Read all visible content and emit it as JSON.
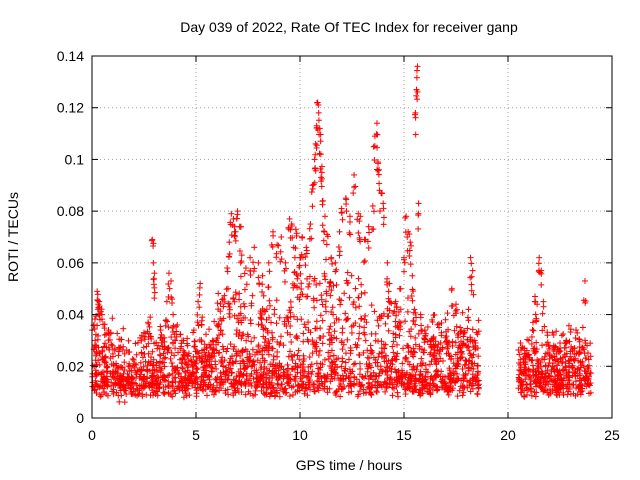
{
  "chart_data": {
    "type": "scatter",
    "title": "Day 039 of 2022, Rate Of TEC Index for receiver ganp",
    "xlabel": "GPS time / hours",
    "ylabel": "ROTI / TECUs",
    "xlim": [
      0,
      25
    ],
    "ylim": [
      0,
      0.14
    ],
    "x_ticks": [
      "0",
      "5",
      "10",
      "15",
      "20",
      "25"
    ],
    "y_ticks": [
      "0",
      "0.02",
      "0.04",
      "0.06",
      "0.08",
      "0.1",
      "0.12",
      "0.14"
    ],
    "grid": true,
    "marker": "+",
    "color": "#ff0000",
    "data_gap_hours": [
      18.6,
      20.5
    ],
    "series": [
      {
        "points": [
          [
            0.0,
            0.034
          ],
          [
            0.1,
            0.036
          ],
          [
            0.15,
            0.03
          ],
          [
            0.2,
            0.028
          ],
          [
            0.25,
            0.049
          ],
          [
            0.3,
            0.044
          ],
          [
            0.35,
            0.045
          ],
          [
            0.5,
            0.026
          ],
          [
            0.6,
            0.022
          ],
          [
            0.7,
            0.02
          ],
          [
            1.0,
            0.018
          ],
          [
            1.3,
            0.016
          ],
          [
            1.6,
            0.015
          ],
          [
            1.9,
            0.016
          ],
          [
            2.2,
            0.018
          ],
          [
            2.4,
            0.032
          ],
          [
            2.5,
            0.033
          ],
          [
            2.7,
            0.037
          ],
          [
            2.8,
            0.039
          ],
          [
            2.9,
            0.069
          ],
          [
            2.95,
            0.06
          ],
          [
            3.0,
            0.056
          ],
          [
            3.3,
            0.034
          ],
          [
            3.6,
            0.045
          ],
          [
            3.7,
            0.056
          ],
          [
            3.8,
            0.053
          ],
          [
            3.9,
            0.04
          ],
          [
            4.1,
            0.036
          ],
          [
            4.4,
            0.03
          ],
          [
            4.6,
            0.028
          ],
          [
            4.9,
            0.034
          ],
          [
            5.1,
            0.045
          ],
          [
            5.2,
            0.052
          ],
          [
            5.3,
            0.039
          ],
          [
            5.5,
            0.027
          ],
          [
            5.8,
            0.03
          ],
          [
            6.1,
            0.036
          ],
          [
            6.3,
            0.046
          ],
          [
            6.5,
            0.058
          ],
          [
            6.6,
            0.068
          ],
          [
            6.7,
            0.079
          ],
          [
            6.8,
            0.077
          ],
          [
            6.9,
            0.072
          ],
          [
            7.0,
            0.08
          ],
          [
            7.1,
            0.074
          ],
          [
            7.2,
            0.063
          ],
          [
            7.4,
            0.058
          ],
          [
            7.6,
            0.062
          ],
          [
            7.8,
            0.066
          ],
          [
            8.0,
            0.06
          ],
          [
            8.2,
            0.055
          ],
          [
            8.5,
            0.06
          ],
          [
            8.7,
            0.072
          ],
          [
            8.9,
            0.067
          ],
          [
            9.1,
            0.07
          ],
          [
            9.3,
            0.06
          ],
          [
            9.5,
            0.077
          ],
          [
            9.6,
            0.075
          ],
          [
            9.7,
            0.066
          ],
          [
            9.8,
            0.073
          ],
          [
            9.9,
            0.055
          ],
          [
            10.0,
            0.062
          ],
          [
            10.1,
            0.07
          ],
          [
            10.3,
            0.066
          ],
          [
            10.5,
            0.075
          ],
          [
            10.6,
            0.09
          ],
          [
            10.7,
            0.1
          ],
          [
            10.75,
            0.106
          ],
          [
            10.8,
            0.113
          ],
          [
            10.85,
            0.122
          ],
          [
            10.9,
            0.118
          ],
          [
            10.95,
            0.112
          ],
          [
            11.0,
            0.102
          ],
          [
            11.05,
            0.095
          ],
          [
            11.1,
            0.084
          ],
          [
            11.2,
            0.078
          ],
          [
            11.3,
            0.071
          ],
          [
            11.5,
            0.062
          ],
          [
            11.7,
            0.06
          ],
          [
            11.9,
            0.072
          ],
          [
            12.0,
            0.081
          ],
          [
            12.2,
            0.085
          ],
          [
            12.4,
            0.078
          ],
          [
            12.6,
            0.094
          ],
          [
            12.8,
            0.079
          ],
          [
            12.9,
            0.078
          ],
          [
            13.1,
            0.069
          ],
          [
            13.3,
            0.074
          ],
          [
            13.5,
            0.082
          ],
          [
            13.6,
            0.109
          ],
          [
            13.7,
            0.114
          ],
          [
            13.75,
            0.099
          ],
          [
            13.8,
            0.096
          ],
          [
            13.9,
            0.087
          ],
          [
            14.0,
            0.083
          ],
          [
            14.2,
            0.06
          ],
          [
            14.3,
            0.052
          ],
          [
            14.6,
            0.045
          ],
          [
            14.8,
            0.05
          ],
          [
            15.0,
            0.062
          ],
          [
            15.1,
            0.078
          ],
          [
            15.2,
            0.072
          ],
          [
            15.3,
            0.068
          ],
          [
            15.4,
            0.055
          ],
          [
            15.5,
            0.042
          ],
          [
            15.55,
            0.118
          ],
          [
            15.6,
            0.127
          ],
          [
            15.65,
            0.136
          ],
          [
            15.7,
            0.083
          ],
          [
            15.8,
            0.04
          ],
          [
            16.0,
            0.034
          ],
          [
            16.3,
            0.03
          ],
          [
            16.5,
            0.028
          ],
          [
            16.8,
            0.033
          ],
          [
            17.0,
            0.038
          ],
          [
            17.3,
            0.05
          ],
          [
            17.5,
            0.044
          ],
          [
            17.7,
            0.035
          ],
          [
            17.9,
            0.033
          ],
          [
            18.1,
            0.042
          ],
          [
            18.2,
            0.062
          ],
          [
            18.3,
            0.057
          ],
          [
            18.4,
            0.03
          ],
          [
            18.55,
            0.018
          ],
          [
            20.6,
            0.029
          ],
          [
            20.8,
            0.025
          ],
          [
            21.0,
            0.03
          ],
          [
            21.2,
            0.037
          ],
          [
            21.3,
            0.047
          ],
          [
            21.4,
            0.044
          ],
          [
            21.5,
            0.062
          ],
          [
            21.6,
            0.057
          ],
          [
            21.7,
            0.045
          ],
          [
            21.9,
            0.032
          ],
          [
            22.2,
            0.028
          ],
          [
            22.5,
            0.029
          ],
          [
            22.8,
            0.03
          ],
          [
            23.1,
            0.026
          ],
          [
            23.4,
            0.025
          ],
          [
            23.6,
            0.035
          ],
          [
            23.7,
            0.053
          ],
          [
            23.8,
            0.028
          ]
        ]
      }
    ]
  }
}
